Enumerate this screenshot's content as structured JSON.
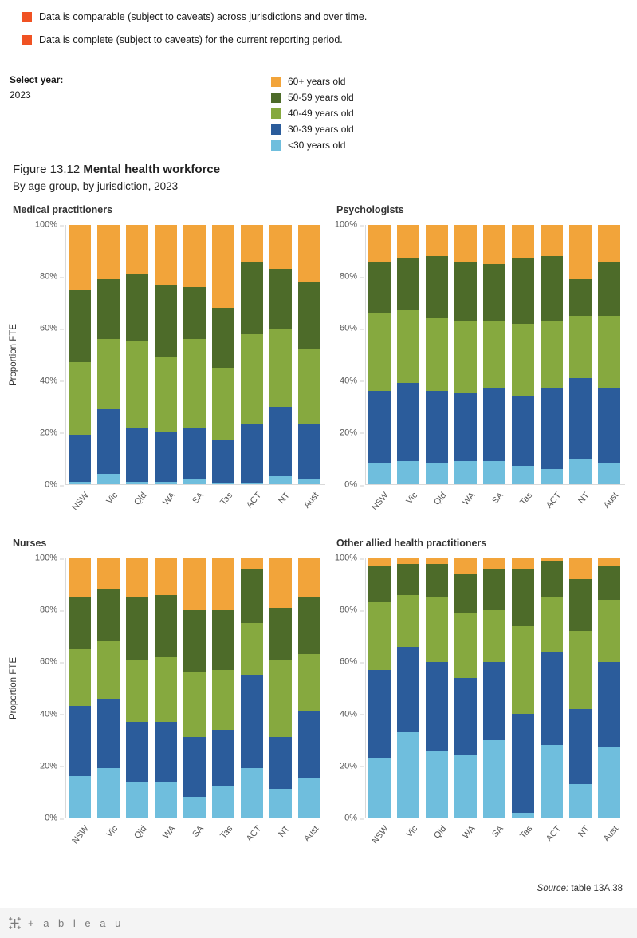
{
  "caveats": [
    {
      "label": "Data is comparable (subject to caveats) across jurisdictions and over time."
    },
    {
      "label": "Data is complete (subject to caveats) for the current reporting period."
    }
  ],
  "caveat_color": "#F05223",
  "select_year": {
    "label": "Select year:",
    "value": "2023"
  },
  "legend": [
    {
      "label": "60+ years old",
      "color": "#F2A43A"
    },
    {
      "label": "50-59 years old",
      "color": "#4D6B29"
    },
    {
      "label": "40-49 years old",
      "color": "#86A93F"
    },
    {
      "label": "30-39 years old",
      "color": "#2B5C9B"
    },
    {
      "label": "<30 years old",
      "color": "#6FBEDD"
    }
  ],
  "title": {
    "prefix": "Figure 13.12 ",
    "bold": "Mental health workforce",
    "subtitle": "By age group, by jurisdiction, 2023"
  },
  "y_axis": {
    "label": "Proportion FTE",
    "ticks": [
      0,
      20,
      40,
      60,
      80,
      100
    ],
    "tick_suffix": "%"
  },
  "categories": [
    "NSW",
    "Vic",
    "Qld",
    "WA",
    "SA",
    "Tas",
    "ACT",
    "NT",
    "Aust"
  ],
  "chart_data": [
    {
      "type": "bar",
      "subtype": "100%-stacked-vertical",
      "title": "Medical practitioners",
      "categories": [
        "NSW",
        "Vic",
        "Qld",
        "WA",
        "SA",
        "Tas",
        "ACT",
        "NT",
        "Aust"
      ],
      "ylabel": "Proportion FTE",
      "ylim": [
        0,
        100
      ],
      "series": [
        {
          "name": "<30 years old",
          "color": "#6FBEDD",
          "values": [
            1,
            4,
            1,
            1,
            2,
            0.5,
            0.5,
            3,
            2
          ]
        },
        {
          "name": "30-39 years old",
          "color": "#2B5C9B",
          "values": [
            18,
            25,
            21,
            19,
            20,
            16.5,
            22.5,
            27,
            21
          ]
        },
        {
          "name": "40-49 years old",
          "color": "#86A93F",
          "values": [
            28,
            27,
            33,
            29,
            34,
            28,
            35,
            30,
            29
          ]
        },
        {
          "name": "50-59 years old",
          "color": "#4D6B29",
          "values": [
            28,
            23,
            26,
            28,
            20,
            23,
            28,
            23,
            26
          ]
        },
        {
          "name": "60+ years old",
          "color": "#F2A43A",
          "values": [
            25,
            21,
            19,
            23,
            24,
            32,
            14,
            17,
            22
          ]
        }
      ]
    },
    {
      "type": "bar",
      "subtype": "100%-stacked-vertical",
      "title": "Psychologists",
      "categories": [
        "NSW",
        "Vic",
        "Qld",
        "WA",
        "SA",
        "Tas",
        "ACT",
        "NT",
        "Aust"
      ],
      "ylabel": "",
      "ylim": [
        0,
        100
      ],
      "series": [
        {
          "name": "<30 years old",
          "color": "#6FBEDD",
          "values": [
            8,
            9,
            8,
            9,
            9,
            7,
            6,
            10,
            8
          ]
        },
        {
          "name": "30-39 years old",
          "color": "#2B5C9B",
          "values": [
            28,
            30,
            28,
            26,
            28,
            27,
            31,
            31,
            29
          ]
        },
        {
          "name": "40-49 years old",
          "color": "#86A93F",
          "values": [
            30,
            28,
            28,
            28,
            26,
            28,
            26,
            24,
            28
          ]
        },
        {
          "name": "50-59 years old",
          "color": "#4D6B29",
          "values": [
            20,
            20,
            24,
            23,
            22,
            25,
            25,
            14,
            21
          ]
        },
        {
          "name": "60+ years old",
          "color": "#F2A43A",
          "values": [
            14,
            13,
            12,
            14,
            15,
            13,
            12,
            21,
            14
          ]
        }
      ]
    },
    {
      "type": "bar",
      "subtype": "100%-stacked-vertical",
      "title": "Nurses",
      "categories": [
        "NSW",
        "Vic",
        "Qld",
        "WA",
        "SA",
        "Tas",
        "ACT",
        "NT",
        "Aust"
      ],
      "ylabel": "Proportion FTE",
      "ylim": [
        0,
        100
      ],
      "series": [
        {
          "name": "<30 years old",
          "color": "#6FBEDD",
          "values": [
            16,
            19,
            14,
            14,
            8,
            12,
            19,
            11,
            15
          ]
        },
        {
          "name": "30-39 years old",
          "color": "#2B5C9B",
          "values": [
            27,
            27,
            23,
            23,
            23,
            22,
            36,
            20,
            26
          ]
        },
        {
          "name": "40-49 years old",
          "color": "#86A93F",
          "values": [
            22,
            22,
            24,
            25,
            25,
            23,
            20,
            30,
            22
          ]
        },
        {
          "name": "50-59 years old",
          "color": "#4D6B29",
          "values": [
            20,
            20,
            24,
            24,
            24,
            23,
            21,
            20,
            22
          ]
        },
        {
          "name": "60+ years old",
          "color": "#F2A43A",
          "values": [
            15,
            12,
            15,
            14,
            20,
            20,
            4,
            19,
            15
          ]
        }
      ]
    },
    {
      "type": "bar",
      "subtype": "100%-stacked-vertical",
      "title": "Other allied health practitioners",
      "categories": [
        "NSW",
        "Vic",
        "Qld",
        "WA",
        "SA",
        "Tas",
        "ACT",
        "NT",
        "Aust"
      ],
      "ylabel": "",
      "ylim": [
        0,
        100
      ],
      "series": [
        {
          "name": "<30 years old",
          "color": "#6FBEDD",
          "values": [
            23,
            33,
            26,
            24,
            30,
            2,
            28,
            13,
            27
          ]
        },
        {
          "name": "30-39 years old",
          "color": "#2B5C9B",
          "values": [
            34,
            33,
            34,
            30,
            30,
            38,
            36,
            29,
            33
          ]
        },
        {
          "name": "40-49 years old",
          "color": "#86A93F",
          "values": [
            26,
            20,
            25,
            25,
            20,
            34,
            21,
            30,
            24
          ]
        },
        {
          "name": "50-59 years old",
          "color": "#4D6B29",
          "values": [
            14,
            12,
            13,
            15,
            16,
            22,
            14,
            20,
            13
          ]
        },
        {
          "name": "60+ years old",
          "color": "#F2A43A",
          "values": [
            3,
            2,
            2,
            6,
            4,
            4,
            1,
            8,
            3
          ]
        }
      ]
    }
  ],
  "source": {
    "italic": "Source:",
    "text": " table 13A.38"
  },
  "footer": {
    "brand_text": "+ a b l e a u"
  }
}
